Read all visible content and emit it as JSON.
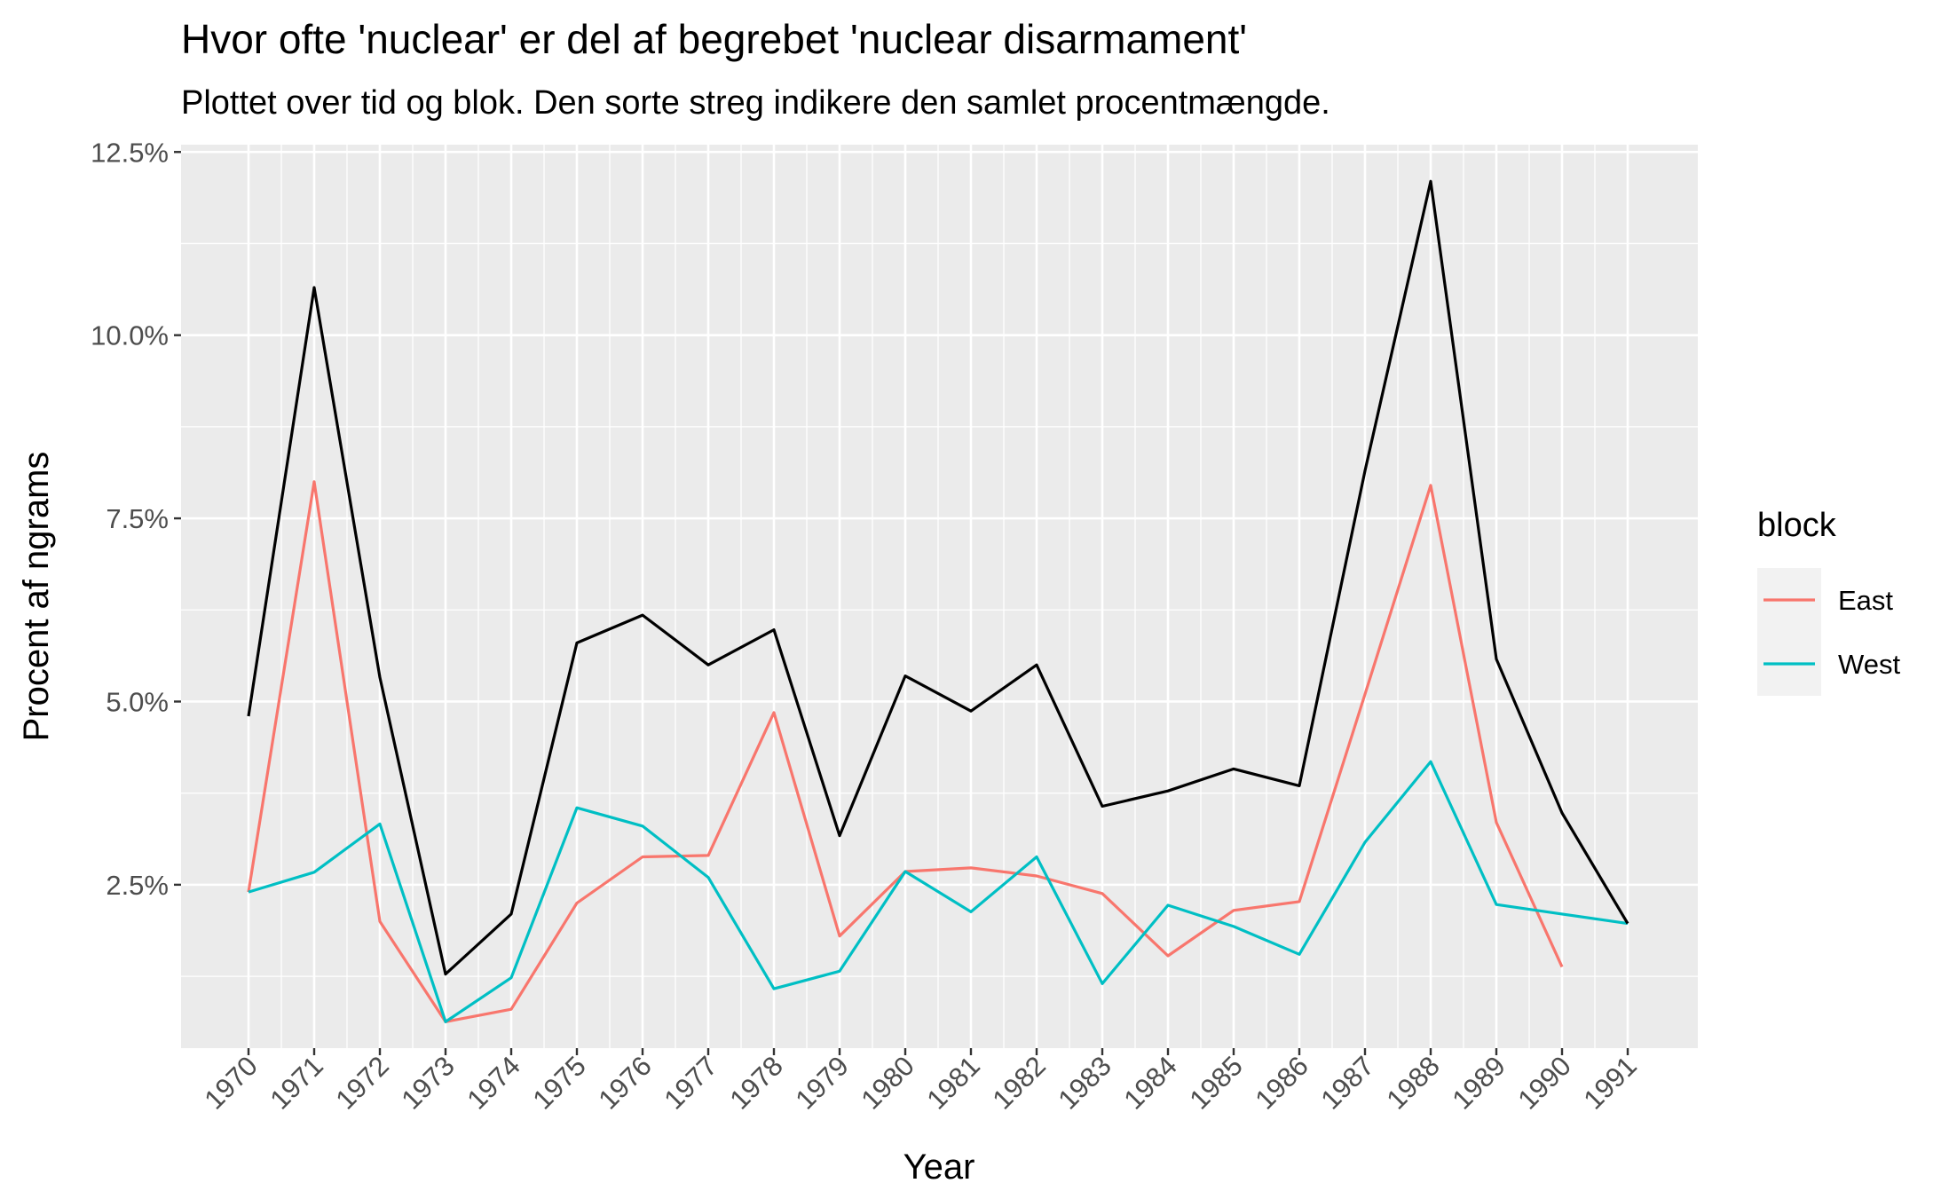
{
  "chart_data": {
    "type": "line",
    "title": "Hvor ofte 'nuclear' er del af begrebet 'nuclear disarmament'",
    "subtitle": "Plottet over tid og blok. Den sorte streg indikere den samlet procentmængde.",
    "xlabel": "Year",
    "ylabel": "Procent af ngrams",
    "x": [
      1970,
      1971,
      1972,
      1973,
      1974,
      1975,
      1976,
      1977,
      1978,
      1979,
      1980,
      1981,
      1982,
      1983,
      1984,
      1985,
      1986,
      1987,
      1988,
      1989,
      1990,
      1991
    ],
    "x_tick_labels": [
      "1970",
      "1971",
      "1972",
      "1973",
      "1974",
      "1975",
      "1976",
      "1977",
      "1978",
      "1979",
      "1980",
      "1981",
      "1982",
      "1983",
      "1984",
      "1985",
      "1986",
      "1987",
      "1988",
      "1989",
      "1990",
      "1991"
    ],
    "y_ticks": [
      2.5,
      5.0,
      7.5,
      10.0,
      12.5
    ],
    "y_tick_labels": [
      "2.5%",
      "5.0%",
      "7.5%",
      "10.0%",
      "12.5%"
    ],
    "ylim": [
      0.27,
      12.6
    ],
    "grid": true,
    "legend": {
      "title": "block",
      "placement": "right"
    },
    "series": [
      {
        "name": "East",
        "color": "#F8766D",
        "in_legend": true,
        "values": [
          2.4,
          8.0,
          2.0,
          0.63,
          0.8,
          2.25,
          2.88,
          2.9,
          4.85,
          1.8,
          2.68,
          2.73,
          2.62,
          2.38,
          1.53,
          2.15,
          2.27,
          5.1,
          7.95,
          3.35,
          1.38,
          null
        ]
      },
      {
        "name": "West",
        "color": "#00BFC4",
        "in_legend": true,
        "values": [
          2.4,
          2.67,
          3.33,
          0.63,
          1.23,
          3.55,
          3.3,
          2.6,
          1.08,
          1.32,
          2.68,
          2.13,
          2.88,
          1.15,
          2.22,
          1.93,
          1.55,
          3.08,
          4.18,
          2.23,
          2.1,
          1.97
        ]
      },
      {
        "name": "",
        "color": "#000000",
        "in_legend": false,
        "values": [
          4.8,
          10.65,
          5.33,
          1.28,
          2.1,
          5.8,
          6.18,
          5.5,
          5.98,
          3.17,
          5.35,
          4.87,
          5.5,
          3.57,
          3.78,
          4.08,
          3.85,
          8.15,
          12.1,
          5.58,
          3.48,
          1.97
        ]
      }
    ]
  }
}
